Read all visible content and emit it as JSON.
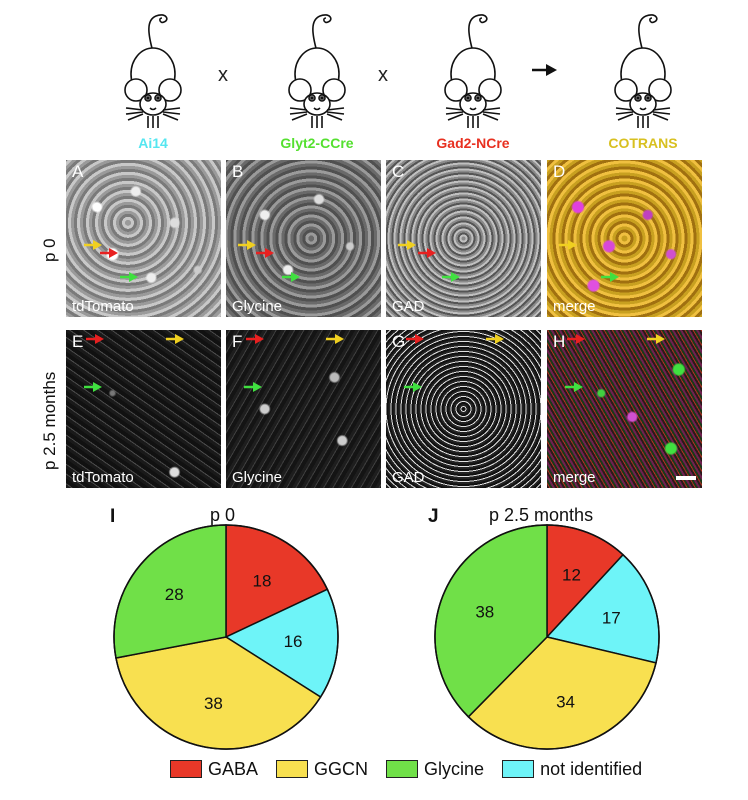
{
  "strains": [
    {
      "label": "Ai14",
      "color": "#55e6f0"
    },
    {
      "label": "Glyt2-CCre",
      "color": "#55e030"
    },
    {
      "label": "Gad2-NCre",
      "color": "#e83020"
    },
    {
      "label": "COTRANS",
      "color": "#d8c020"
    }
  ],
  "cross_symbols": [
    "x",
    "x"
  ],
  "micrographs": {
    "row_labels": [
      "p 0",
      "p 2.5 months"
    ],
    "panels": [
      {
        "letter": "A",
        "stain": "tdTomato"
      },
      {
        "letter": "B",
        "stain": "Glycine"
      },
      {
        "letter": "C",
        "stain": "GAD"
      },
      {
        "letter": "D",
        "stain": "merge"
      },
      {
        "letter": "E",
        "stain": "tdTomato"
      },
      {
        "letter": "F",
        "stain": "Glycine"
      },
      {
        "letter": "G",
        "stain": "GAD"
      },
      {
        "letter": "H",
        "stain": "merge"
      }
    ],
    "arrow_colors": {
      "yellow": "#f0d020",
      "red": "#e82020",
      "green": "#40e040"
    }
  },
  "chart_data": [
    {
      "type": "pie",
      "panel": "I",
      "title": "p 0",
      "categories": [
        "GABA",
        "not identified",
        "GGCN",
        "Glycine"
      ],
      "values": [
        18,
        16,
        38,
        28
      ],
      "colors": [
        "#e83828",
        "#6ef4f8",
        "#f8e050",
        "#70e048"
      ]
    },
    {
      "type": "pie",
      "panel": "J",
      "title": "p 2.5 months",
      "categories": [
        "GABA",
        "not identified",
        "GGCN",
        "Glycine"
      ],
      "values": [
        12,
        17,
        34,
        38
      ],
      "colors": [
        "#e83828",
        "#6ef4f8",
        "#f8e050",
        "#70e048"
      ]
    }
  ],
  "legend": [
    {
      "label": "GABA",
      "color": "#e83828"
    },
    {
      "label": "GGCN",
      "color": "#f8e050"
    },
    {
      "label": "Glycine",
      "color": "#70e048"
    },
    {
      "label": "not identified",
      "color": "#6ef4f8"
    }
  ]
}
